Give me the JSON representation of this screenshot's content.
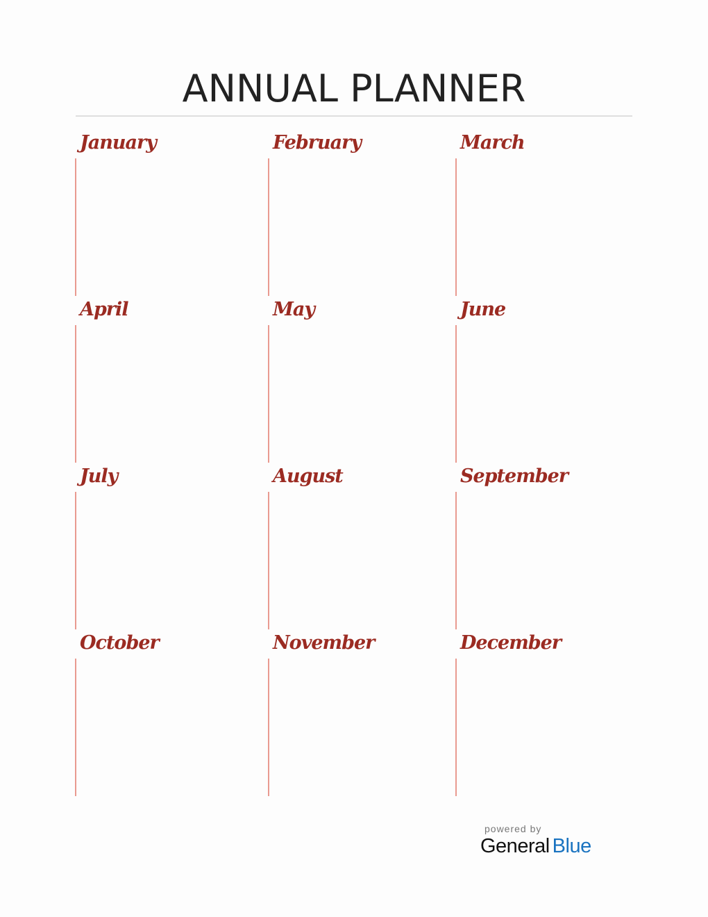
{
  "title": "ANNUAL PLANNER",
  "months": [
    "January",
    "February",
    "March",
    "April",
    "May",
    "June",
    "July",
    "August",
    "September",
    "October",
    "November",
    "December"
  ],
  "footer": {
    "powered_by": "powered by",
    "brand_part1": "General",
    "brand_part2": "Blue"
  },
  "colors": {
    "month_name": "#9b2b22",
    "month_line": "#e99a90",
    "brand_blue": "#1a73c0"
  }
}
